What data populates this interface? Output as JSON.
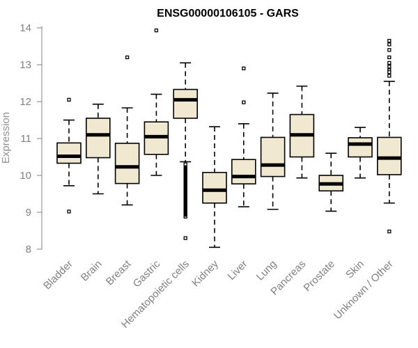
{
  "chart_data": {
    "type": "boxplot",
    "title": "ENSG00000106105 - GARS",
    "ylabel": "Expression",
    "xlabel": "",
    "ylim": [
      8,
      14
    ],
    "yticks": [
      8,
      9,
      10,
      11,
      12,
      13,
      14
    ],
    "box_fill": "#f0e8d0",
    "box_stroke": "#000000",
    "categories": [
      "Bladder",
      "Brain",
      "Breast",
      "Gastric",
      "Hematopoietic cells",
      "Kidney",
      "Liver",
      "Lung",
      "Pancreas",
      "Prostate",
      "Skin",
      "Unknown / Other"
    ],
    "boxes": [
      {
        "name": "Bladder",
        "min": 9.72,
        "q1": 10.33,
        "median": 10.52,
        "q3": 10.88,
        "max": 11.5,
        "outliers": [
          12.05,
          9.02
        ]
      },
      {
        "name": "Brain",
        "min": 9.5,
        "q1": 10.48,
        "median": 11.1,
        "q3": 11.55,
        "max": 11.93,
        "outliers": []
      },
      {
        "name": "Breast",
        "min": 9.2,
        "q1": 9.78,
        "median": 10.23,
        "q3": 10.87,
        "max": 11.83,
        "outliers": [
          13.2
        ]
      },
      {
        "name": "Gastric",
        "min": 10.0,
        "q1": 10.57,
        "median": 11.05,
        "q3": 11.45,
        "max": 12.2,
        "outliers": [
          13.93
        ]
      },
      {
        "name": "Hematopoietic cells",
        "min": 10.37,
        "q1": 11.55,
        "median": 12.05,
        "q3": 12.33,
        "max": 13.05,
        "outliers": [
          10.3,
          10.2,
          10.1,
          10.0,
          9.9,
          9.8,
          9.7,
          9.6,
          9.5,
          9.4,
          9.3,
          9.2,
          9.1,
          9.0,
          8.95,
          8.88,
          8.3
        ]
      },
      {
        "name": "Kidney",
        "min": 8.05,
        "q1": 9.25,
        "median": 9.6,
        "q3": 10.08,
        "max": 11.32,
        "outliers": []
      },
      {
        "name": "Liver",
        "min": 9.15,
        "q1": 9.77,
        "median": 9.97,
        "q3": 10.43,
        "max": 11.4,
        "outliers": [
          12.9,
          11.98
        ]
      },
      {
        "name": "Lung",
        "min": 9.08,
        "q1": 9.97,
        "median": 10.28,
        "q3": 11.03,
        "max": 12.23,
        "outliers": []
      },
      {
        "name": "Pancreas",
        "min": 9.93,
        "q1": 10.5,
        "median": 11.1,
        "q3": 11.65,
        "max": 12.42,
        "outliers": []
      },
      {
        "name": "Prostate",
        "min": 9.03,
        "q1": 9.58,
        "median": 9.77,
        "q3": 10.0,
        "max": 10.6,
        "outliers": []
      },
      {
        "name": "Skin",
        "min": 9.93,
        "q1": 10.5,
        "median": 10.85,
        "q3": 11.02,
        "max": 11.3,
        "outliers": []
      },
      {
        "name": "Unknown / Other",
        "min": 9.25,
        "q1": 10.02,
        "median": 10.47,
        "q3": 11.03,
        "max": 12.55,
        "outliers": [
          13.65,
          13.55,
          13.4,
          13.2,
          13.05,
          12.95,
          12.85,
          12.8,
          12.7,
          8.48
        ]
      }
    ]
  }
}
